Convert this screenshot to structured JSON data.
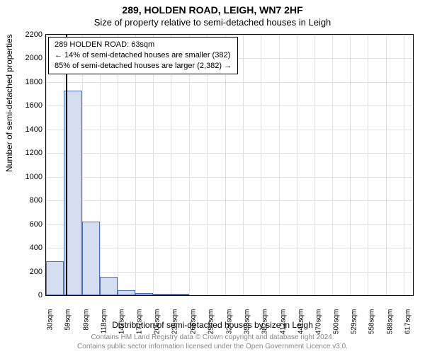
{
  "address": "289, HOLDEN ROAD, LEIGH, WN7 2HF",
  "subtitle": "Size of property relative to semi-detached houses in Leigh",
  "ylabel": "Number of semi-detached properties",
  "xlabel": "Distribution of semi-detached houses by size in Leigh",
  "footer_line1": "Contains HM Land Registry data © Crown copyright and database right 2024.",
  "footer_line2": "Contains public sector information licensed under the Open Government Licence v3.0.",
  "info_line1": "289 HOLDEN ROAD: 63sqm",
  "info_line2": "← 14% of semi-detached houses are smaller (382)",
  "info_line3": "85% of semi-detached houses are larger (2,382) →",
  "chart": {
    "type": "histogram",
    "background_color": "#ffffff",
    "grid_color": "#e0e0e0",
    "border_color": "#000000",
    "bar_fill": "#d3ddef",
    "bar_border": "#4a6fb0",
    "marker_color": "#000000",
    "ylim": [
      0,
      2200
    ],
    "ytick_step": 200,
    "yticks": [
      0,
      200,
      400,
      600,
      800,
      1000,
      1200,
      1400,
      1600,
      1800,
      2000,
      2200
    ],
    "x_min": 30,
    "x_max": 632,
    "xtick_labels": [
      "30sqm",
      "59sqm",
      "89sqm",
      "118sqm",
      "147sqm",
      "177sqm",
      "206sqm",
      "235sqm",
      "265sqm",
      "294sqm",
      "324sqm",
      "353sqm",
      "382sqm",
      "412sqm",
      "441sqm",
      "470sqm",
      "500sqm",
      "529sqm",
      "558sqm",
      "588sqm",
      "617sqm"
    ],
    "xtick_values": [
      30,
      59,
      89,
      118,
      147,
      177,
      206,
      235,
      265,
      294,
      324,
      353,
      382,
      412,
      441,
      470,
      500,
      529,
      558,
      588,
      617
    ],
    "bars": [
      {
        "x0": 30,
        "x1": 59,
        "value": 290
      },
      {
        "x0": 59,
        "x1": 89,
        "value": 1730
      },
      {
        "x0": 89,
        "x1": 118,
        "value": 620
      },
      {
        "x0": 118,
        "x1": 147,
        "value": 155
      },
      {
        "x0": 147,
        "x1": 177,
        "value": 40
      },
      {
        "x0": 177,
        "x1": 206,
        "value": 18
      },
      {
        "x0": 206,
        "x1": 235,
        "value": 8
      },
      {
        "x0": 235,
        "x1": 265,
        "value": 4
      }
    ],
    "marker_x": 63,
    "title_fontsize": 14,
    "subtitle_fontsize": 13,
    "label_fontsize": 12,
    "tick_fontsize": 11,
    "footer_color": "#888888"
  }
}
